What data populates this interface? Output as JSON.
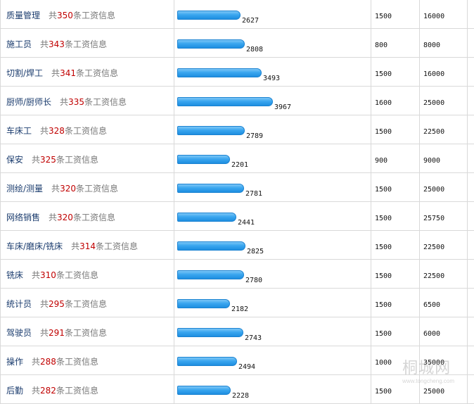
{
  "bar_color": "#3aa6ef",
  "count_color": "#c00000",
  "rows": [
    {
      "job": "质量管理",
      "prefix": "共",
      "count": "350",
      "suffix": "条工资信息",
      "avg": 2627,
      "min": "1500",
      "max": "16000"
    },
    {
      "job": "施工员",
      "prefix": "共",
      "count": "343",
      "suffix": "条工资信息",
      "avg": 2808,
      "min": "800",
      "max": "8000"
    },
    {
      "job": "切割/焊工",
      "prefix": "共",
      "count": "341",
      "suffix": "条工资信息",
      "avg": 3493,
      "min": "1500",
      "max": "16000"
    },
    {
      "job": "厨师/厨师长",
      "prefix": "共",
      "count": "335",
      "suffix": "条工资信息",
      "avg": 3967,
      "min": "1600",
      "max": "25000"
    },
    {
      "job": "车床工",
      "prefix": "共",
      "count": "328",
      "suffix": "条工资信息",
      "avg": 2789,
      "min": "1500",
      "max": "22500"
    },
    {
      "job": "保安",
      "prefix": "共",
      "count": "325",
      "suffix": "条工资信息",
      "avg": 2201,
      "min": "900",
      "max": "9000"
    },
    {
      "job": "测绘/测量",
      "prefix": "共",
      "count": "320",
      "suffix": "条工资信息",
      "avg": 2781,
      "min": "1500",
      "max": "25000"
    },
    {
      "job": "网络销售",
      "prefix": "共",
      "count": "320",
      "suffix": "条工资信息",
      "avg": 2441,
      "min": "1500",
      "max": "25750"
    },
    {
      "job": "车床/磨床/铣床",
      "prefix": "共",
      "count": "314",
      "suffix": "条工资信息",
      "avg": 2825,
      "min": "1500",
      "max": "22500"
    },
    {
      "job": "铣床",
      "prefix": "共",
      "count": "310",
      "suffix": "条工资信息",
      "avg": 2780,
      "min": "1500",
      "max": "22500"
    },
    {
      "job": "统计员",
      "prefix": "共",
      "count": "295",
      "suffix": "条工资信息",
      "avg": 2182,
      "min": "1500",
      "max": "6500"
    },
    {
      "job": "驾驶员",
      "prefix": "共",
      "count": "291",
      "suffix": "条工资信息",
      "avg": 2743,
      "min": "1500",
      "max": "6000"
    },
    {
      "job": "操作",
      "prefix": "共",
      "count": "288",
      "suffix": "条工资信息",
      "avg": 2494,
      "min": "1000",
      "max": "35000"
    },
    {
      "job": "后勤",
      "prefix": "共",
      "count": "282",
      "suffix": "条工资信息",
      "avg": 2228,
      "min": "1500",
      "max": "25000"
    }
  ],
  "watermark": {
    "main": "桐城网",
    "sub": "www.tongcheng.com"
  }
}
